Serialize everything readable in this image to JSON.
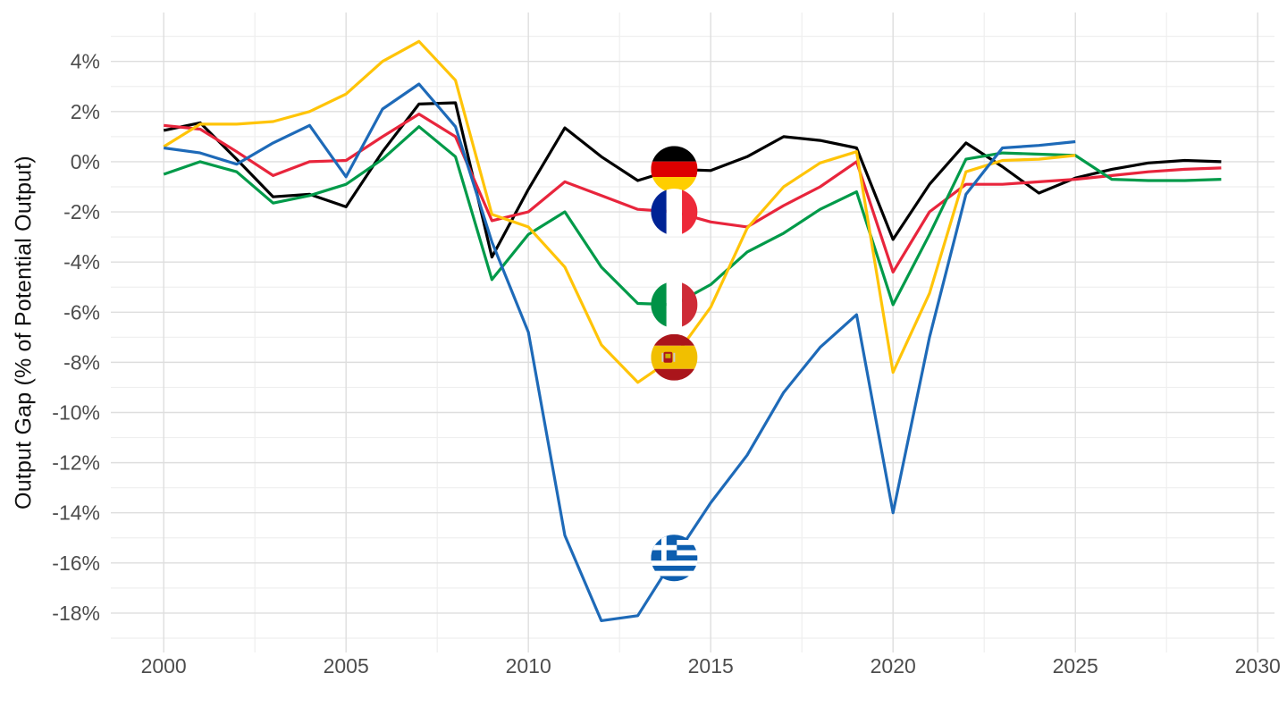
{
  "chart_data": {
    "type": "line",
    "title": "",
    "xlabel": "",
    "ylabel": "Output Gap (% of Potential Output)",
    "grid": "on",
    "legend": "circular country-flag markers placed on each line at year 2014",
    "marker_year": 2014,
    "xlim": [
      1998.55,
      2030.46
    ],
    "ylim": [
      -19.57,
      5.95
    ],
    "x_ticks": {
      "values": [
        2000,
        2005,
        2010,
        2015,
        2020,
        2025,
        2030
      ],
      "labels": [
        "2000",
        "2005",
        "2010",
        "2015",
        "2020",
        "2025",
        "2030"
      ]
    },
    "y_ticks": {
      "values": [
        4,
        2,
        0,
        -2,
        -4,
        -6,
        -8,
        -10,
        -12,
        -14,
        -16,
        -18
      ],
      "labels": [
        "4%",
        "2%",
        "0%",
        "-2%",
        "-4%",
        "-6%",
        "-8%",
        "-10%",
        "-12%",
        "-14%",
        "-16%",
        "-18%"
      ]
    },
    "x_minor": [
      2002.5,
      2007.5,
      2012.5,
      2017.5,
      2022.5,
      2027.5
    ],
    "y_minor": [
      5,
      3,
      1,
      -1,
      -3,
      -5,
      -7,
      -9,
      -11,
      -13,
      -15,
      -17,
      -19
    ],
    "x": [
      2000,
      2001,
      2002,
      2003,
      2004,
      2005,
      2006,
      2007,
      2008,
      2009,
      2010,
      2011,
      2012,
      2013,
      2014,
      2015,
      2016,
      2017,
      2018,
      2019,
      2020,
      2021,
      2022,
      2023,
      2024,
      2025,
      2026,
      2027,
      2028,
      2029
    ],
    "series": [
      {
        "name": "Germany",
        "color": "#000000",
        "flag": "germany",
        "values": [
          1.25,
          1.55,
          0.1,
          -1.4,
          -1.3,
          -1.8,
          0.4,
          2.3,
          2.35,
          -3.8,
          -1.1,
          1.35,
          0.2,
          -0.75,
          -0.3,
          -0.35,
          0.2,
          1.0,
          0.85,
          0.55,
          -3.1,
          -0.9,
          0.75,
          -0.2,
          -1.25,
          -0.65,
          -0.3,
          -0.05,
          0.05,
          0.0
        ]
      },
      {
        "name": "France",
        "color": "#E8253C",
        "flag": "france",
        "values": [
          1.45,
          1.3,
          0.4,
          -0.55,
          0.0,
          0.05,
          1.0,
          1.9,
          1.0,
          -2.35,
          -2.0,
          -0.8,
          -1.35,
          -1.9,
          -2.0,
          -2.4,
          -2.6,
          -1.75,
          -1.0,
          0.0,
          -4.4,
          -2.0,
          -0.9,
          -0.9,
          -0.8,
          -0.7,
          -0.55,
          -0.4,
          -0.3,
          -0.25
        ]
      },
      {
        "name": "Italy",
        "color": "#009A49",
        "flag": "italy",
        "values": [
          -0.5,
          0.0,
          -0.4,
          -1.65,
          -1.35,
          -0.9,
          0.1,
          1.4,
          0.2,
          -4.7,
          -2.9,
          -2.0,
          -4.2,
          -5.65,
          -5.7,
          -4.9,
          -3.6,
          -2.85,
          -1.9,
          -1.2,
          -5.7,
          -2.9,
          0.1,
          0.35,
          0.3,
          0.25,
          -0.7,
          -0.75,
          -0.75,
          -0.7
        ]
      },
      {
        "name": "Spain",
        "color": "#FFC408",
        "flag": "spain",
        "values": [
          0.6,
          1.5,
          1.5,
          1.6,
          2.0,
          2.7,
          4.0,
          4.8,
          3.25,
          -2.1,
          -2.6,
          -4.2,
          -7.3,
          -8.8,
          -7.8,
          -5.8,
          -2.65,
          -1.0,
          -0.05,
          0.4,
          -8.4,
          -5.25,
          -0.4,
          0.05,
          0.1,
          0.25,
          null,
          null,
          null,
          null
        ]
      },
      {
        "name": "Greece",
        "color": "#1E6AB8",
        "flag": "greece",
        "values": [
          0.55,
          0.35,
          -0.1,
          0.75,
          1.45,
          -0.6,
          2.1,
          3.1,
          1.4,
          -3.2,
          -6.8,
          -14.9,
          -18.3,
          -18.1,
          -15.8,
          -13.6,
          -11.7,
          -9.2,
          -7.4,
          -6.1,
          -14.0,
          -7.0,
          -1.3,
          0.55,
          0.65,
          0.8,
          null,
          null,
          null,
          null
        ]
      }
    ]
  }
}
